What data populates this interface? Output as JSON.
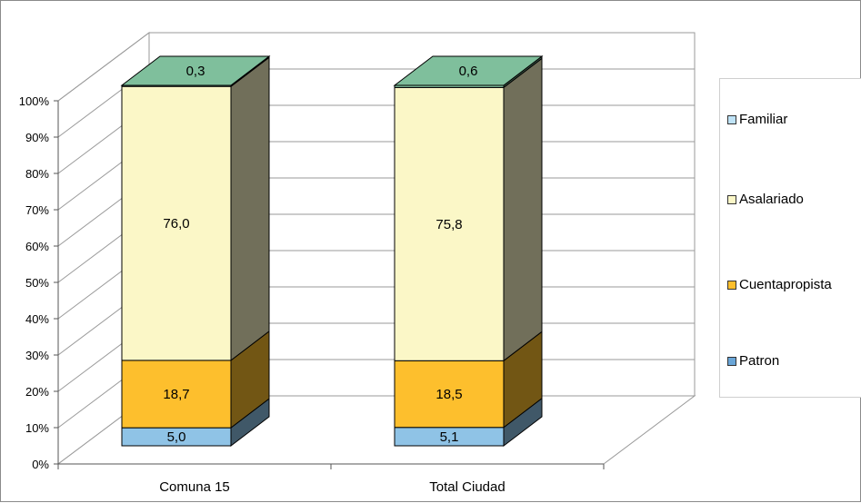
{
  "chart_data": {
    "type": "bar",
    "stacked": true,
    "three_d": true,
    "categories": [
      "Comuna 15",
      "Total Ciudad"
    ],
    "series": [
      {
        "name": "Patron",
        "values": [
          5.0,
          5.1
        ],
        "labels": [
          "5,0",
          "5,1"
        ],
        "color": "#8fc3e6"
      },
      {
        "name": "Cuentapropista",
        "values": [
          18.7,
          18.5
        ],
        "labels": [
          "18,7",
          "18,5"
        ],
        "color": "#fdbf2d"
      },
      {
        "name": "Asalariado",
        "values": [
          76.0,
          75.8
        ],
        "labels": [
          "76,0",
          "75,8"
        ],
        "color": "#fbf7c7"
      },
      {
        "name": "Familiar",
        "values": [
          0.3,
          0.6
        ],
        "labels": [
          "0,3",
          "0,6"
        ],
        "color": "#7fbf9c"
      }
    ],
    "y_ticks": [
      "0%",
      "10%",
      "20%",
      "30%",
      "40%",
      "50%",
      "60%",
      "70%",
      "80%",
      "90%",
      "100%"
    ],
    "ylim": [
      0,
      100
    ],
    "grid": true,
    "legend": {
      "position": "right",
      "entries": [
        {
          "label": "Familiar",
          "color": "#bfe3f7"
        },
        {
          "label": "Asalariado",
          "color": "#fbf7c7"
        },
        {
          "label": "Cuentapropista",
          "color": "#fdbf2d"
        },
        {
          "label": "Patron",
          "color": "#6aa6d8"
        }
      ]
    }
  }
}
